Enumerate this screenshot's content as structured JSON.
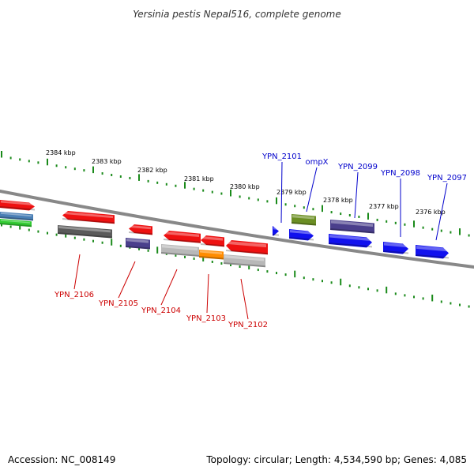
{
  "title": "Yersinia pestis Nepal516, complete genome",
  "footer": {
    "accession": "Accession: NC_008149",
    "summary": "Topology: circular; Length: 4,534,590 bp; Genes: 4,085"
  },
  "colors": {
    "tick": "#1a8a1a",
    "backbone": "#888888",
    "minus_label": "#cc0000",
    "plus_label": "#0000cc",
    "red": "#ee1111",
    "blue": "#1111ee",
    "purple": "#4a3f8c",
    "olive": "#6b8e23",
    "darkgray": "#5a5a5a",
    "lightgray": "#b8b8b8",
    "orange": "#ff8c00",
    "green": "#33cc33",
    "steelblue": "#4a7fb5"
  },
  "ruler": {
    "labels": [
      "2384 kbp",
      "2383 kbp",
      "2382 kbp",
      "2381 kbp",
      "2380 kbp",
      "2379 kbp",
      "2378 kbp",
      "2377 kbp",
      "2376 kbp"
    ]
  },
  "labels_top": [
    {
      "text": "YPN_2101"
    },
    {
      "text": "ompX"
    },
    {
      "text": "YPN_2099"
    },
    {
      "text": "YPN_2098"
    },
    {
      "text": "YPN_2097"
    }
  ],
  "labels_bottom": [
    {
      "text": "YPN_2106"
    },
    {
      "text": "YPN_2105"
    },
    {
      "text": "YPN_2104"
    },
    {
      "text": "YPN_2103"
    },
    {
      "text": "YPN_2102"
    }
  ]
}
